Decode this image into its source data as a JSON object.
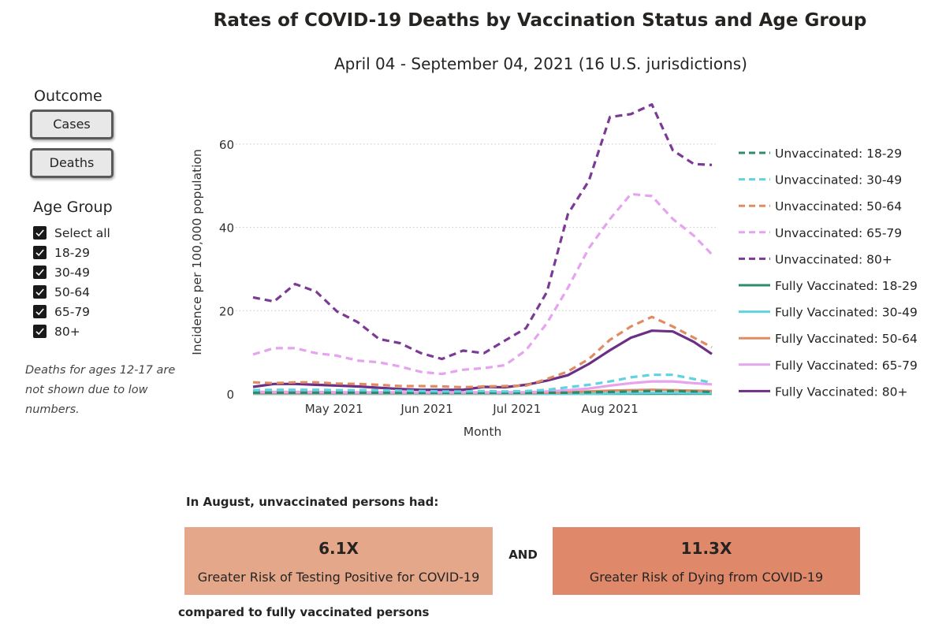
{
  "title": "Rates of COVID-19 Deaths by Vaccination Status and Age Group",
  "subtitle": "April 04 - September 04, 2021 (16 U.S. jurisdictions)",
  "sidebar": {
    "outcome_heading": "Outcome",
    "buttons": {
      "cases_label": "Cases",
      "deaths_label": "Deaths"
    },
    "age_group_heading": "Age Group",
    "age_items": [
      {
        "label": "Select all",
        "checked": true
      },
      {
        "label": "18-29",
        "checked": true
      },
      {
        "label": "30-49",
        "checked": true
      },
      {
        "label": "50-64",
        "checked": true
      },
      {
        "label": "65-79",
        "checked": true
      },
      {
        "label": "80+",
        "checked": true
      }
    ],
    "note": "Deaths for ages 12-17 are not shown due to low numbers."
  },
  "chart_data": {
    "type": "line",
    "xlabel": "Month",
    "ylabel": "Incidence per 100,000 population",
    "ylim": [
      0,
      70
    ],
    "yticks": [
      0,
      20,
      40,
      60
    ],
    "xlim": [
      "2021-04-04",
      "2021-09-04"
    ],
    "xticks": [
      {
        "date": "2021-05-01",
        "label": "May 2021"
      },
      {
        "date": "2021-06-01",
        "label": "Jun 2021"
      },
      {
        "date": "2021-07-01",
        "label": "Jul 2021"
      },
      {
        "date": "2021-08-01",
        "label": "Aug 2021"
      }
    ],
    "grid": "horizontal dotted",
    "legend_position": "right",
    "x": [
      "2021-04-04",
      "2021-04-11",
      "2021-04-18",
      "2021-04-25",
      "2021-05-02",
      "2021-05-09",
      "2021-05-16",
      "2021-05-23",
      "2021-05-30",
      "2021-06-06",
      "2021-06-13",
      "2021-06-20",
      "2021-06-27",
      "2021-07-04",
      "2021-07-11",
      "2021-07-18",
      "2021-07-25",
      "2021-08-01",
      "2021-08-08",
      "2021-08-15",
      "2021-08-22",
      "2021-08-29",
      "2021-09-04"
    ],
    "series": [
      {
        "name": "Unvaccinated: 18-29",
        "dash": true,
        "color": "#2e8b6e",
        "values": [
          0.3,
          0.3,
          0.3,
          0.3,
          0.3,
          0.3,
          0.3,
          0.3,
          0.3,
          0.3,
          0.3,
          0.3,
          0.3,
          0.3,
          0.3,
          0.3,
          0.4,
          0.5,
          0.6,
          0.7,
          0.7,
          0.6,
          0.5
        ]
      },
      {
        "name": "Unvaccinated: 30-49",
        "dash": true,
        "color": "#5fd3e0",
        "values": [
          0.9,
          1.0,
          1.0,
          1.0,
          0.9,
          0.9,
          0.9,
          0.8,
          0.7,
          0.6,
          0.6,
          0.7,
          0.6,
          0.7,
          1.0,
          1.6,
          2.2,
          3.0,
          4.0,
          4.6,
          4.6,
          3.6,
          2.7
        ]
      },
      {
        "name": "Unvaccinated: 50-64",
        "dash": true,
        "color": "#e08c63",
        "values": [
          2.8,
          2.6,
          2.8,
          2.8,
          2.5,
          2.4,
          2.2,
          1.9,
          1.9,
          1.8,
          1.6,
          1.8,
          1.9,
          2.0,
          3.6,
          5.4,
          8.4,
          13.0,
          16.2,
          18.5,
          16.2,
          13.5,
          11.2
        ]
      },
      {
        "name": "Unvaccinated: 65-79",
        "dash": true,
        "color": "#e6a3ef",
        "values": [
          9.5,
          11.0,
          11.0,
          9.8,
          9.2,
          8.0,
          7.6,
          6.6,
          5.3,
          4.8,
          5.8,
          6.2,
          6.9,
          10.5,
          17.0,
          25.5,
          35.0,
          42.0,
          48.0,
          47.5,
          42.0,
          38.0,
          33.5
        ]
      },
      {
        "name": "Unvaccinated: 80+",
        "dash": true,
        "color": "#7b3a94",
        "values": [
          23.2,
          22.2,
          26.4,
          24.6,
          19.8,
          17.2,
          13.2,
          12.2,
          9.8,
          8.4,
          10.4,
          9.8,
          12.8,
          15.8,
          24.5,
          43.2,
          51.2,
          66.5,
          67.2,
          69.5,
          58.5,
          55.2,
          55.0
        ]
      },
      {
        "name": "Fully Vaccinated: 18-29",
        "dash": false,
        "color": "#2e8b6e",
        "values": [
          0.05,
          0.05,
          0.05,
          0.05,
          0.05,
          0.05,
          0.05,
          0.05,
          0.05,
          0.05,
          0.05,
          0.05,
          0.05,
          0.05,
          0.05,
          0.05,
          0.05,
          0.05,
          0.05,
          0.05,
          0.05,
          0.05,
          0.05
        ]
      },
      {
        "name": "Fully Vaccinated: 30-49",
        "dash": false,
        "color": "#5fd3e0",
        "values": [
          0.05,
          0.05,
          0.05,
          0.05,
          0.05,
          0.05,
          0.05,
          0.05,
          0.05,
          0.05,
          0.05,
          0.05,
          0.05,
          0.05,
          0.05,
          0.05,
          0.1,
          0.15,
          0.2,
          0.25,
          0.25,
          0.2,
          0.2
        ]
      },
      {
        "name": "Fully Vaccinated: 50-64",
        "dash": false,
        "color": "#e08c63",
        "values": [
          0.2,
          0.2,
          0.2,
          0.2,
          0.2,
          0.2,
          0.2,
          0.2,
          0.2,
          0.2,
          0.2,
          0.2,
          0.2,
          0.2,
          0.3,
          0.4,
          0.6,
          0.8,
          0.9,
          1.0,
          0.9,
          0.8,
          0.7
        ]
      },
      {
        "name": "Fully Vaccinated: 65-79",
        "dash": false,
        "color": "#e6a3ef",
        "values": [
          0.5,
          0.5,
          0.5,
          0.5,
          0.4,
          0.4,
          0.4,
          0.4,
          0.4,
          0.4,
          0.4,
          0.4,
          0.4,
          0.4,
          0.6,
          0.9,
          1.3,
          2.0,
          2.6,
          3.0,
          3.0,
          2.6,
          2.3
        ]
      },
      {
        "name": "Fully Vaccinated: 80+",
        "dash": false,
        "color": "#6b2f85",
        "values": [
          1.7,
          2.4,
          2.4,
          2.2,
          2.0,
          1.8,
          1.5,
          1.2,
          1.0,
          1.0,
          1.0,
          1.7,
          1.6,
          2.2,
          3.2,
          4.5,
          7.2,
          10.5,
          13.5,
          15.2,
          15.0,
          12.5,
          9.6
        ]
      }
    ]
  },
  "summary": {
    "heading": "In August, unvaccinated persons had:",
    "cases": {
      "value": "6.1X",
      "text": "Greater Risk of Testing Positive for COVID-19",
      "color": "#e5a78a"
    },
    "and_label": "AND",
    "deaths": {
      "value": "11.3X",
      "text": "Greater Risk of Dying from COVID-19",
      "color": "#e0896a"
    },
    "footer": "compared to fully vaccinated persons"
  }
}
